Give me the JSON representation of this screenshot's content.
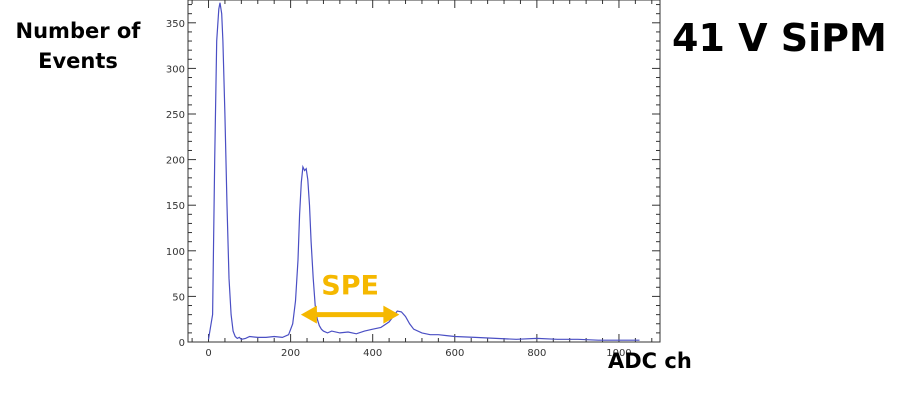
{
  "chart_data": {
    "type": "line",
    "title": "41 V SiPM",
    "ylabel": [
      "Number of",
      "Events"
    ],
    "xlabel": "ADC ch",
    "xlim": [
      -50,
      1100
    ],
    "ylim": [
      0,
      375
    ],
    "xticks": [
      0,
      200,
      400,
      600,
      800,
      1000
    ],
    "xtick_labels": [
      "0",
      "200",
      "400",
      "600",
      "800",
      "1000"
    ],
    "yticks": [
      0,
      50,
      100,
      150,
      200,
      250,
      300,
      350
    ],
    "ytick_labels": [
      "0",
      "50",
      "100",
      "150",
      "200",
      "250",
      "300",
      "350"
    ],
    "grid": false,
    "line_color": "#4a4fc4",
    "series": [
      {
        "x": [
          0,
          10,
          15,
          20,
          25,
          28,
          32,
          35,
          40,
          45,
          50,
          55,
          60,
          65,
          70,
          75,
          80,
          90,
          100,
          120,
          140,
          160,
          180,
          195,
          205,
          212,
          218,
          222,
          226,
          230,
          234,
          238,
          242,
          246,
          250,
          255,
          260,
          265,
          270,
          275,
          280,
          290,
          300,
          320,
          340,
          360,
          380,
          400,
          420,
          440,
          450,
          460,
          470,
          480,
          490,
          500,
          520,
          540,
          560,
          580,
          600,
          650,
          700,
          750,
          800,
          850,
          900,
          950,
          1000,
          1050
        ],
        "y": [
          3,
          30,
          200,
          330,
          365,
          372,
          360,
          330,
          250,
          150,
          70,
          30,
          12,
          6,
          4,
          5,
          3,
          4,
          6,
          5,
          5,
          6,
          5,
          8,
          20,
          45,
          90,
          140,
          175,
          192,
          188,
          190,
          178,
          150,
          110,
          70,
          40,
          25,
          18,
          14,
          12,
          10,
          12,
          10,
          11,
          9,
          12,
          14,
          16,
          22,
          28,
          34,
          33,
          28,
          20,
          14,
          10,
          8,
          8,
          7,
          6,
          5,
          4,
          3,
          4,
          3,
          3,
          2,
          2,
          2
        ]
      }
    ],
    "annotations": [
      {
        "text": "SPE",
        "color": "#f5b800",
        "arrow_from": 225,
        "arrow_to": 465,
        "arrow_y": 30
      }
    ]
  }
}
